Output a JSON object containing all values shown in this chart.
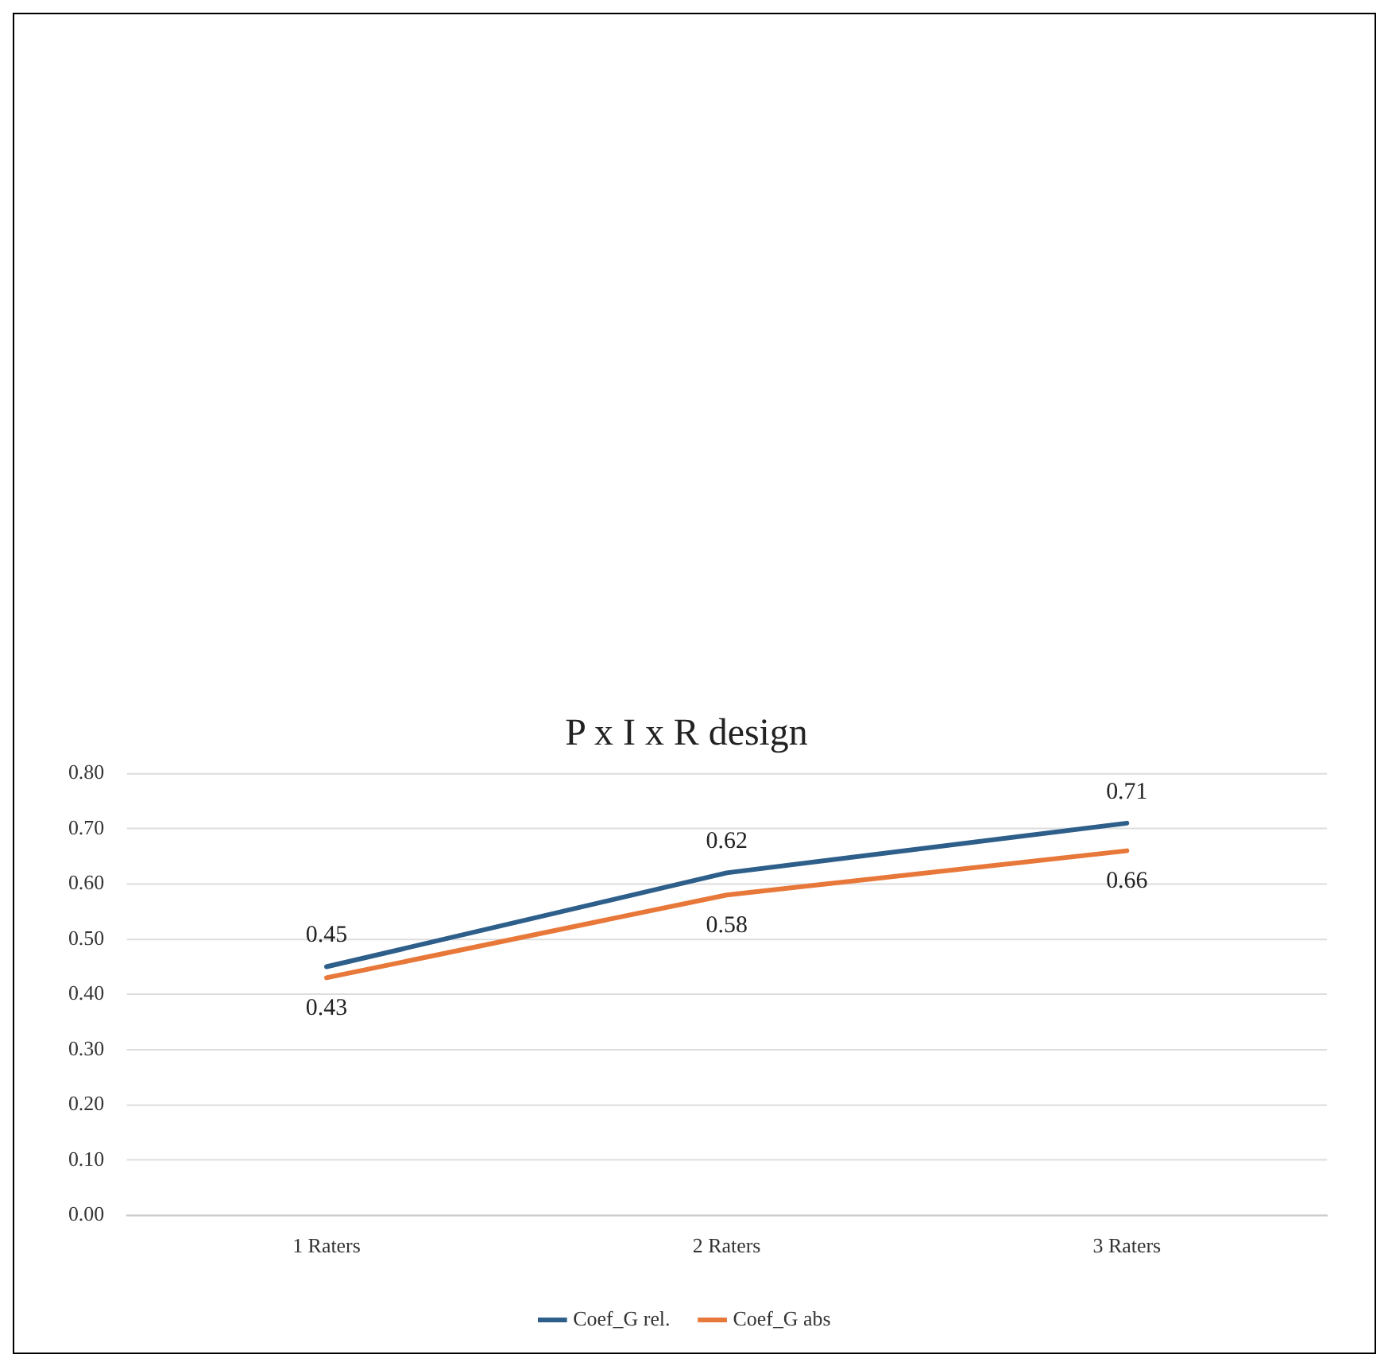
{
  "chart_data": {
    "type": "line",
    "title": "P x I x R design",
    "categories": [
      "1 Raters",
      "2 Raters",
      "3 Raters"
    ],
    "series": [
      {
        "name": "Coef_G rel.",
        "color": "#2e5f8a",
        "values": [
          0.45,
          0.62,
          0.71
        ]
      },
      {
        "name": "Coef_G abs",
        "color": "#e8783a",
        "values": [
          0.43,
          0.58,
          0.66
        ]
      }
    ],
    "ylim": [
      0,
      0.8
    ],
    "yticks": [
      {
        "value": 0,
        "label": "0.00"
      },
      {
        "value": 0.1,
        "label": "0.10"
      },
      {
        "value": 0.2,
        "label": "0.20"
      },
      {
        "value": 0.3,
        "label": "0.30"
      },
      {
        "value": 0.4,
        "label": "0.40"
      },
      {
        "value": 0.5,
        "label": "0.50"
      },
      {
        "value": 0.6,
        "label": "0.60"
      },
      {
        "value": 0.7,
        "label": "0.70"
      },
      {
        "value": 0.8,
        "label": "0.80"
      }
    ],
    "grid": "y",
    "legend": "bottom",
    "data_labels": true,
    "marker": "none"
  }
}
